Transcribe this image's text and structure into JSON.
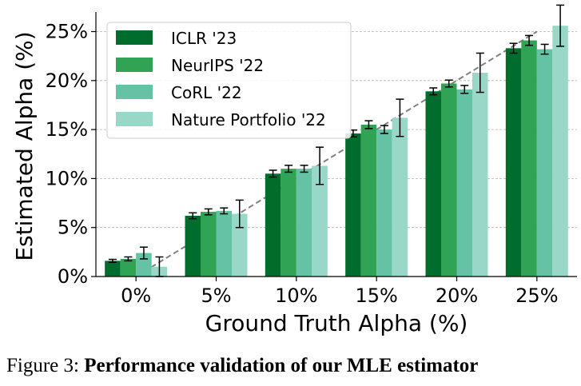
{
  "chart_data": {
    "type": "bar",
    "xlabel": "Ground Truth Alpha (%)",
    "ylabel": "Estimated Alpha (%)",
    "categories": [
      "0%",
      "5%",
      "10%",
      "15%",
      "20%",
      "25%"
    ],
    "x_values": [
      0,
      5,
      10,
      15,
      20,
      25
    ],
    "ylim": [
      0,
      27
    ],
    "yticks": [
      0,
      5,
      10,
      15,
      20,
      25
    ],
    "ytick_labels": [
      "0%",
      "5%",
      "10%",
      "15%",
      "20%",
      "25%"
    ],
    "grid": "horizontal dashed",
    "legend_position": "top-left",
    "reference_line": "y = x (dashed gray)",
    "series": [
      {
        "name": "ICLR '23",
        "color": "#006d2c",
        "values": [
          1.6,
          6.2,
          10.5,
          14.6,
          18.9,
          23.3
        ],
        "errors": [
          0.15,
          0.3,
          0.35,
          0.35,
          0.35,
          0.5
        ]
      },
      {
        "name": "NeurIPS '22",
        "color": "#31a354",
        "values": [
          1.8,
          6.6,
          11.0,
          15.5,
          19.7,
          24.1
        ],
        "errors": [
          0.2,
          0.3,
          0.35,
          0.4,
          0.35,
          0.5
        ]
      },
      {
        "name": "CoRL '22",
        "color": "#66c2a4",
        "values": [
          2.4,
          6.7,
          11.0,
          15.0,
          19.1,
          23.2
        ],
        "errors": [
          0.6,
          0.3,
          0.35,
          0.4,
          0.4,
          0.5
        ]
      },
      {
        "name": "Nature Portfolio '22",
        "color": "#99d8c9",
        "values": [
          1.0,
          6.4,
          11.3,
          16.2,
          20.8,
          25.6
        ],
        "errors": [
          1.0,
          1.4,
          1.9,
          1.9,
          2.0,
          2.1
        ]
      }
    ]
  },
  "caption": {
    "prefix": "Figure 3: ",
    "title": "Performance validation of our MLE estimator"
  }
}
